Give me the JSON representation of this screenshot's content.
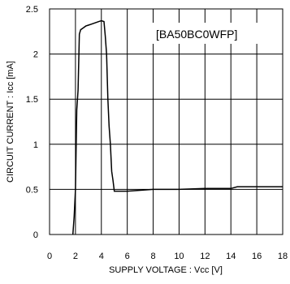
{
  "chart_data": {
    "type": "line",
    "xlabel": "SUPPLY VOLTAGE : Vcc [V]",
    "ylabel": "CIRCUIT CURRENT : Icc [mA]",
    "annotation": "[BA50BC0WFP]",
    "xlim": [
      0,
      18
    ],
    "ylim": [
      0,
      2.5
    ],
    "xticks": [
      0,
      2,
      4,
      6,
      8,
      10,
      12,
      14,
      16,
      18
    ],
    "yticks": [
      0,
      0.5,
      1,
      1.5,
      2,
      2.5
    ],
    "xtick_labels": [
      "0",
      "2",
      "4",
      "6",
      "8",
      "10",
      "12",
      "14",
      "16",
      "18"
    ],
    "ytick_labels": [
      "0",
      "0.5",
      "1",
      "1.5",
      "2",
      "2.5"
    ],
    "grid": true,
    "series": [
      {
        "x": [
          1.8,
          1.9,
          2.0,
          2.1,
          2.2,
          2.3,
          2.4,
          2.6,
          2.8,
          3.0,
          3.2,
          3.4,
          3.6,
          3.8,
          4.0,
          4.2,
          4.3,
          4.4,
          4.5,
          4.6,
          4.7,
          4.8,
          4.9,
          5.0,
          5.2,
          6.0,
          7.0,
          8.0,
          9.0,
          10.0,
          12.0,
          14.0,
          14.5,
          16.0,
          18.0
        ],
        "y": [
          0.0,
          0.2,
          0.5,
          1.38,
          1.6,
          2.22,
          2.27,
          2.29,
          2.31,
          2.32,
          2.33,
          2.34,
          2.35,
          2.36,
          2.37,
          2.36,
          2.2,
          2.0,
          1.5,
          1.2,
          1.0,
          0.7,
          0.6,
          0.48,
          0.48,
          0.48,
          0.49,
          0.5,
          0.5,
          0.5,
          0.51,
          0.51,
          0.53,
          0.53,
          0.53
        ]
      }
    ]
  }
}
